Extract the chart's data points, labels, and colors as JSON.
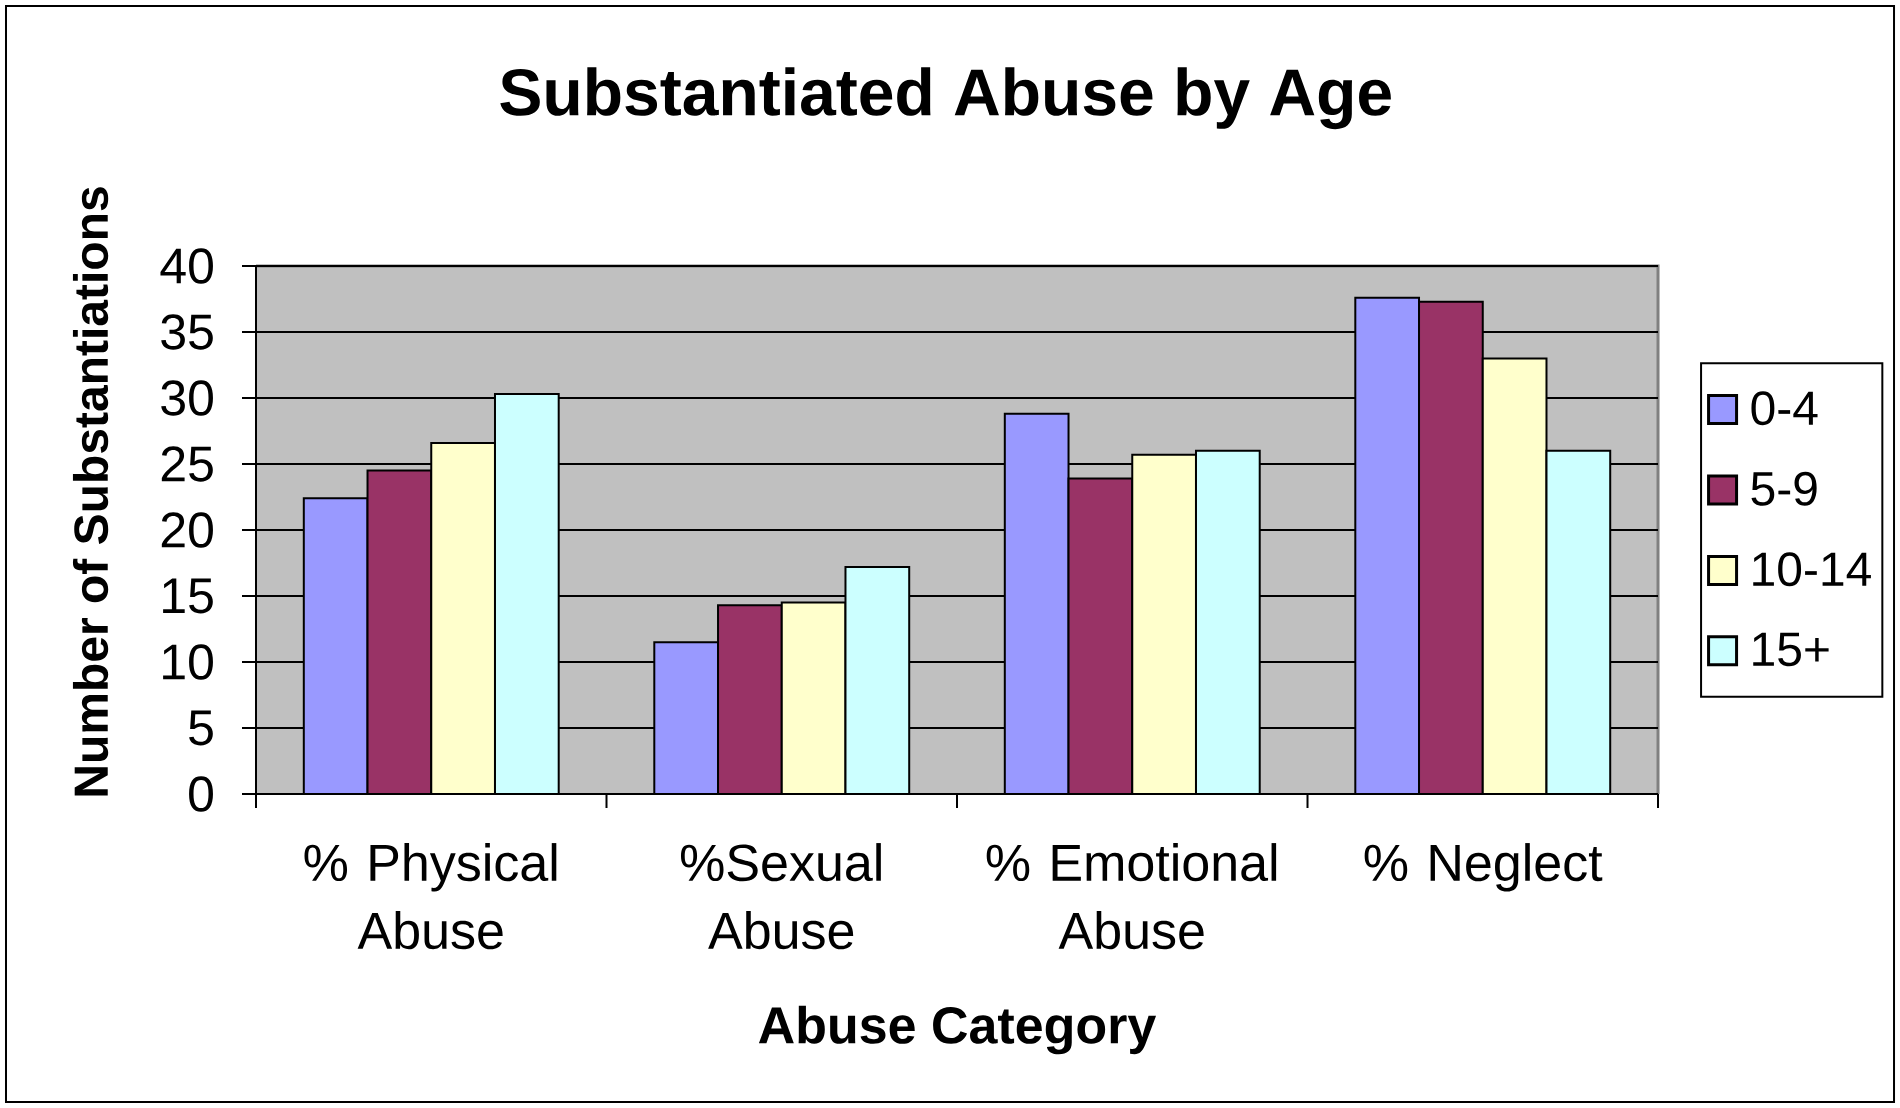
{
  "chart_data": {
    "type": "bar",
    "title": "Substantiated Abuse by Age",
    "xlabel": "Abuse Category",
    "ylabel": "Number of Substantiations",
    "categories": [
      "% Physical Abuse",
      "%Sexual Abuse",
      "% Emotional Abuse",
      "% Neglect"
    ],
    "series": [
      {
        "name": "0-4",
        "color": "#9999ff",
        "values": [
          22.4,
          11.5,
          28.8,
          37.6
        ]
      },
      {
        "name": "5-9",
        "color": "#993366",
        "values": [
          24.5,
          14.3,
          23.9,
          37.3
        ]
      },
      {
        "name": "10-14",
        "color": "#ffffcc",
        "values": [
          26.6,
          14.5,
          25.7,
          33.0
        ]
      },
      {
        "name": "15+",
        "color": "#ccffff",
        "values": [
          30.3,
          17.2,
          26.0,
          26.0
        ]
      }
    ],
    "ylim": [
      0,
      40
    ],
    "yticks": [
      0,
      5,
      10,
      15,
      20,
      25,
      30,
      35,
      40
    ],
    "grid": "y",
    "legend": "right"
  }
}
